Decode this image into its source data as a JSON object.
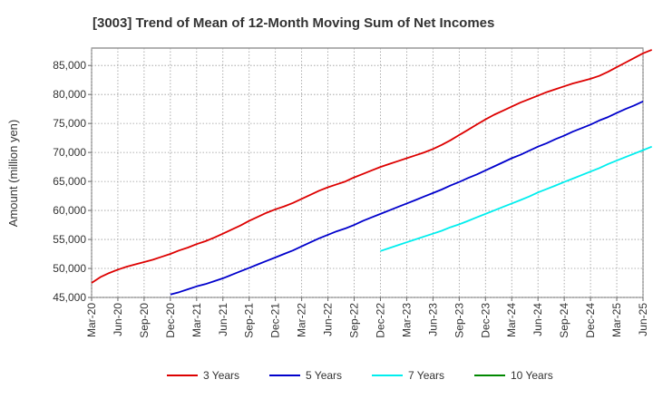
{
  "chart_data": {
    "type": "line",
    "title": "[3003]  Trend of Mean of 12-Month Moving Sum of Net Incomes",
    "xlabel": "",
    "ylabel": "Amount (million yen)",
    "ylim": [
      45000,
      88000
    ],
    "yticks": [
      45000,
      50000,
      55000,
      60000,
      65000,
      70000,
      75000,
      80000,
      85000
    ],
    "ytick_labels": [
      "45,000",
      "50,000",
      "55,000",
      "60,000",
      "65,000",
      "70,000",
      "75,000",
      "80,000",
      "85,000"
    ],
    "x_tick_labels": [
      "Mar-20",
      "Jun-20",
      "Sep-20",
      "Dec-20",
      "Mar-21",
      "Jun-21",
      "Sep-21",
      "Dec-21",
      "Mar-22",
      "Jun-22",
      "Sep-22",
      "Dec-22",
      "Mar-23",
      "Jun-23",
      "Sep-23",
      "Dec-23",
      "Mar-24",
      "Jun-24",
      "Sep-24",
      "Dec-24",
      "Mar-25",
      "Jun-25"
    ],
    "grid": true,
    "legend_position": "bottom",
    "series": [
      {
        "name": "3 Years",
        "color": "#dd0000",
        "start": "Mar-20",
        "values": [
          47500,
          48500,
          49200,
          49800,
          50300,
          50700,
          51100,
          51500,
          52000,
          52500,
          53100,
          53600,
          54200,
          54700,
          55300,
          56000,
          56700,
          57400,
          58200,
          58900,
          59600,
          60200,
          60700,
          61300,
          62000,
          62700,
          63400,
          64000,
          64500,
          65000,
          65700,
          66300,
          66900,
          67500,
          68000,
          68500,
          69000,
          69500,
          70000,
          70600,
          71300,
          72100,
          73000,
          73900,
          74800,
          75700,
          76500,
          77200,
          77900,
          78600,
          79200,
          79800,
          80400,
          80900,
          81400,
          81900,
          82300,
          82700,
          83200,
          83900,
          84700,
          85500,
          86300,
          87100,
          87700
        ]
      },
      {
        "name": "5 Years",
        "color": "#0000cc",
        "start": "Dec-20",
        "values": [
          45500,
          45900,
          46400,
          46900,
          47300,
          47800,
          48300,
          48900,
          49500,
          50100,
          50700,
          51300,
          51900,
          52500,
          53100,
          53800,
          54500,
          55200,
          55800,
          56400,
          56900,
          57500,
          58200,
          58800,
          59400,
          60000,
          60600,
          61200,
          61800,
          62400,
          63000,
          63600,
          64300,
          64900,
          65600,
          66200,
          66900,
          67600,
          68300,
          69000,
          69600,
          70300,
          71000,
          71600,
          72300,
          72900,
          73600,
          74200,
          74800,
          75500,
          76100,
          76800,
          77500,
          78100,
          78800
        ]
      },
      {
        "name": "7 Years",
        "color": "#00eeee",
        "start": "Dec-22",
        "values": [
          53000,
          53500,
          54000,
          54500,
          55000,
          55500,
          56000,
          56500,
          57100,
          57600,
          58200,
          58800,
          59400,
          60000,
          60600,
          61200,
          61800,
          62400,
          63100,
          63700,
          64300,
          64900,
          65500,
          66100,
          66700,
          67300,
          68000,
          68600,
          69200,
          69800,
          70400,
          71000
        ]
      },
      {
        "name": "10 Years",
        "color": "#008800",
        "start": "Mar-25",
        "values": []
      }
    ]
  }
}
